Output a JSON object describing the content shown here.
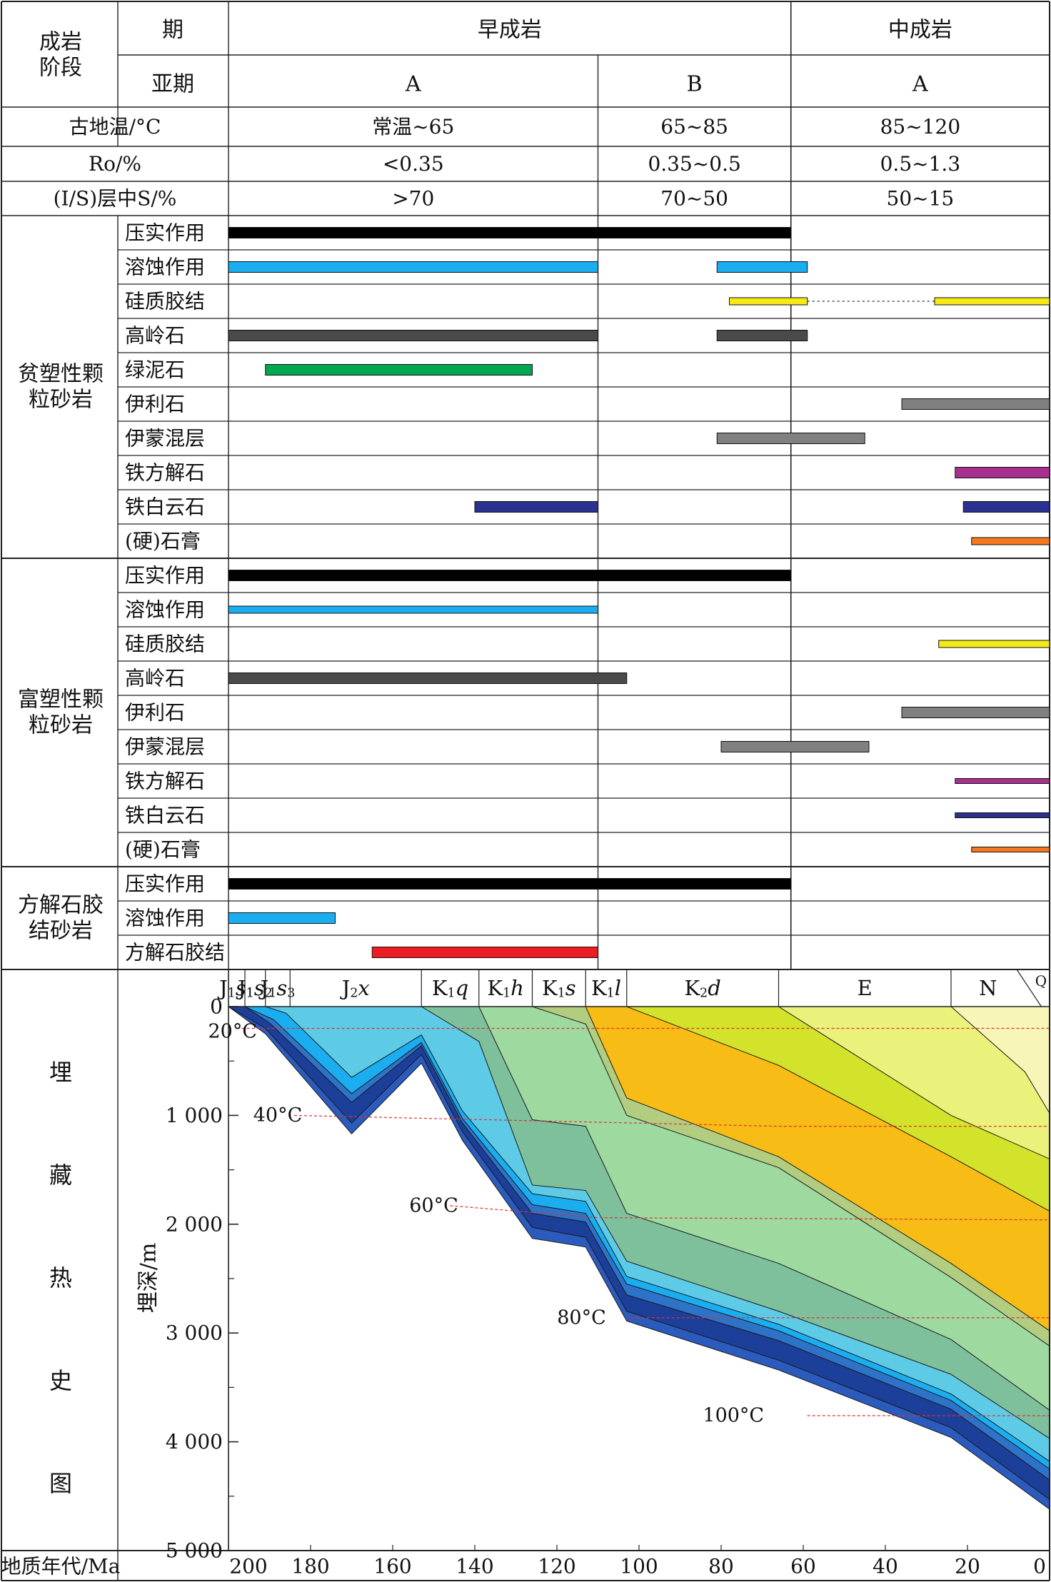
{
  "header": {
    "stage_label": "成岩\n阶段",
    "period_label": "期",
    "subperiod_label": "亚期",
    "periods": [
      {
        "name": "早成岩",
        "subs": [
          "A",
          "B"
        ]
      },
      {
        "name": "中成岩",
        "subs": [
          "A"
        ]
      }
    ],
    "rows": [
      {
        "label": "古地温/°C",
        "values": [
          "常温~65",
          "65~85",
          "85~120"
        ]
      },
      {
        "label": "Ro/%",
        "values": [
          "<0.35",
          "0.35~0.5",
          "0.5~1.3"
        ]
      },
      {
        "label": "(I/S)层中S/%",
        "values": [
          ">70",
          "70~50",
          "50~15"
        ]
      }
    ]
  },
  "diagenesis": [
    {
      "group": "贫塑性颗\n粒砂岩",
      "items": [
        {
          "name": "压实作用",
          "color": "#000000",
          "weight": "thick",
          "bars": [
            [
              200,
              63
            ]
          ]
        },
        {
          "name": "溶蚀作用",
          "color": "#1aaef0",
          "weight": "thick",
          "bars": [
            [
              200,
              110
            ],
            [
              81,
              59
            ]
          ]
        },
        {
          "name": "硅质胶结",
          "color": "#f5ea14",
          "weight": "thin",
          "bars": [
            [
              78,
              59
            ],
            [
              28,
              0
            ]
          ],
          "dotted": [
            [
              59,
              28
            ]
          ]
        },
        {
          "name": "高岭石",
          "color": "#4a4a4a",
          "weight": "thick",
          "bars": [
            [
              200,
              110
            ],
            [
              81,
              59
            ]
          ]
        },
        {
          "name": "绿泥石",
          "color": "#00a651",
          "weight": "thick",
          "bars": [
            [
              191,
              126
            ]
          ]
        },
        {
          "name": "伊利石",
          "color": "#808080",
          "weight": "thick",
          "bars": [
            [
              36,
              0
            ]
          ]
        },
        {
          "name": "伊蒙混层",
          "color": "#808080",
          "weight": "thick",
          "bars": [
            [
              81,
              45
            ]
          ]
        },
        {
          "name": "铁方解石",
          "color": "#a8308f",
          "weight": "thick",
          "bars": [
            [
              23,
              0
            ]
          ]
        },
        {
          "name": "铁白云石",
          "color": "#2b3190",
          "weight": "thick",
          "bars": [
            [
              140,
              110
            ],
            [
              21,
              0
            ]
          ]
        },
        {
          "name": "(硬)石膏",
          "color": "#f47920",
          "weight": "thin",
          "bars": [
            [
              19,
              0
            ]
          ]
        }
      ]
    },
    {
      "group": "富塑性颗\n粒砂岩",
      "items": [
        {
          "name": "压实作用",
          "color": "#000000",
          "weight": "thick",
          "bars": [
            [
              200,
              63
            ]
          ]
        },
        {
          "name": "溶蚀作用",
          "color": "#1aaef0",
          "weight": "thin",
          "bars": [
            [
              200,
              110
            ]
          ]
        },
        {
          "name": "硅质胶结",
          "color": "#f5ea14",
          "weight": "thin",
          "bars": [
            [
              27,
              0
            ]
          ]
        },
        {
          "name": "高岭石",
          "color": "#4a4a4a",
          "weight": "thick",
          "bars": [
            [
              200,
              103
            ]
          ]
        },
        {
          "name": "伊利石",
          "color": "#808080",
          "weight": "thick",
          "bars": [
            [
              36,
              0
            ]
          ]
        },
        {
          "name": "伊蒙混层",
          "color": "#808080",
          "weight": "thick",
          "bars": [
            [
              80,
              44
            ]
          ]
        },
        {
          "name": "铁方解石",
          "color": "#a8308f",
          "weight": "hair",
          "bars": [
            [
              23,
              0
            ]
          ]
        },
        {
          "name": "铁白云石",
          "color": "#2b3190",
          "weight": "hair",
          "bars": [
            [
              23,
              0
            ]
          ]
        },
        {
          "name": "(硬)石膏",
          "color": "#f47920",
          "weight": "hair",
          "bars": [
            [
              19,
              0
            ]
          ]
        }
      ]
    },
    {
      "group": "方解石胶\n结砂岩",
      "items": [
        {
          "name": "压实作用",
          "color": "#000000",
          "weight": "thick",
          "bars": [
            [
              200,
              63
            ]
          ]
        },
        {
          "name": "溶蚀作用",
          "color": "#1aaef0",
          "weight": "thick",
          "bars": [
            [
              200,
              174
            ]
          ]
        },
        {
          "name": "方解石胶结",
          "color": "#ed1c24",
          "weight": "thick",
          "bars": [
            [
              165,
              110
            ]
          ]
        }
      ]
    }
  ],
  "chart_data": {
    "type": "area",
    "section_label": "埋\n藏\n热\n史\n图",
    "ylabel": "埋深/m",
    "xlabel": "地质年代/Ma",
    "xlim": [
      200,
      0
    ],
    "ylim": [
      0,
      5000
    ],
    "xticks": [
      200,
      180,
      160,
      140,
      120,
      100,
      80,
      60,
      40,
      20,
      0
    ],
    "yticks": [
      0,
      1000,
      2000,
      3000,
      4000,
      5000
    ],
    "ytick_labels": [
      "0",
      "1 000",
      "2 000",
      "3 000",
      "4 000",
      "5 000"
    ],
    "strata": [
      {
        "label": "J1s1",
        "from": 200,
        "to": 196
      },
      {
        "label": "J1s2",
        "from": 196,
        "to": 191
      },
      {
        "label": "J1s3",
        "from": 191,
        "to": 185
      },
      {
        "label": "J2x",
        "from": 185,
        "to": 153
      },
      {
        "label": "K1q",
        "from": 153,
        "to": 139
      },
      {
        "label": "K1h",
        "from": 139,
        "to": 126
      },
      {
        "label": "K1s",
        "from": 126,
        "to": 113
      },
      {
        "label": "K1l",
        "from": 113,
        "to": 103
      },
      {
        "label": "K2d",
        "from": 103,
        "to": 66
      },
      {
        "label": "E",
        "from": 66,
        "to": 24
      },
      {
        "label": "N",
        "from": 24,
        "to": 6
      },
      {
        "label": "Q",
        "from": 6,
        "to": 0
      }
    ],
    "horizons": [
      {
        "color": "#2a5bbd",
        "points": [
          [
            200,
            0
          ],
          [
            191,
            250
          ],
          [
            170,
            1170
          ],
          [
            153,
            520
          ],
          [
            143,
            1230
          ],
          [
            126,
            2130
          ],
          [
            113,
            2210
          ],
          [
            103,
            2890
          ],
          [
            66,
            3340
          ],
          [
            24,
            3960
          ],
          [
            0,
            4620
          ]
        ]
      },
      {
        "color": "#1c3f99",
        "points": [
          [
            200,
            0
          ],
          [
            191,
            200
          ],
          [
            170,
            1070
          ],
          [
            153,
            440
          ],
          [
            143,
            1150
          ],
          [
            126,
            2030
          ],
          [
            113,
            2120
          ],
          [
            103,
            2800
          ],
          [
            66,
            3250
          ],
          [
            24,
            3870
          ],
          [
            0,
            4530
          ]
        ]
      },
      {
        "color": "#2d74c9",
        "points": [
          [
            196,
            0
          ],
          [
            190,
            150
          ],
          [
            170,
            880
          ],
          [
            153,
            360
          ],
          [
            143,
            1070
          ],
          [
            126,
            1900
          ],
          [
            113,
            1980
          ],
          [
            103,
            2650
          ],
          [
            66,
            3070
          ],
          [
            24,
            3700
          ],
          [
            0,
            4350
          ]
        ]
      },
      {
        "color": "#1aaef0",
        "points": [
          [
            196,
            0
          ],
          [
            189,
            120
          ],
          [
            170,
            800
          ],
          [
            153,
            330
          ],
          [
            143,
            1030
          ],
          [
            126,
            1820
          ],
          [
            113,
            1900
          ],
          [
            103,
            2550
          ],
          [
            66,
            2980
          ],
          [
            24,
            3620
          ],
          [
            0,
            4250
          ]
        ]
      },
      {
        "color": "#5ecbe6",
        "points": [
          [
            191,
            0
          ],
          [
            186,
            60
          ],
          [
            170,
            650
          ],
          [
            153,
            260
          ],
          [
            143,
            960
          ],
          [
            126,
            1720
          ],
          [
            113,
            1790
          ],
          [
            103,
            2480
          ],
          [
            66,
            2920
          ],
          [
            24,
            3560
          ],
          [
            0,
            4180
          ]
        ]
      },
      {
        "color": "#7ec09c",
        "points": [
          [
            153,
            0
          ],
          [
            139,
            320
          ],
          [
            126,
            1640
          ],
          [
            113,
            1690
          ],
          [
            103,
            2340
          ],
          [
            66,
            2800
          ],
          [
            24,
            3380
          ],
          [
            0,
            3970
          ]
        ]
      },
      {
        "color": "#9ed99f",
        "points": [
          [
            139,
            0
          ],
          [
            126,
            1040
          ],
          [
            113,
            1100
          ],
          [
            103,
            1900
          ],
          [
            66,
            2360
          ],
          [
            24,
            3060
          ],
          [
            0,
            3710
          ]
        ]
      },
      {
        "color": "#b2cc80",
        "points": [
          [
            126,
            0
          ],
          [
            113,
            160
          ],
          [
            103,
            1000
          ],
          [
            66,
            1480
          ],
          [
            24,
            2490
          ],
          [
            0,
            3120
          ]
        ]
      },
      {
        "color": "#f8bc16",
        "points": [
          [
            113,
            0
          ],
          [
            103,
            840
          ],
          [
            66,
            1380
          ],
          [
            24,
            2360
          ],
          [
            0,
            2980
          ]
        ]
      },
      {
        "color": "#d3e22a",
        "points": [
          [
            103,
            0
          ],
          [
            66,
            540
          ],
          [
            24,
            1380
          ],
          [
            0,
            1880
          ]
        ]
      },
      {
        "color": "#ebf27b",
        "points": [
          [
            66,
            0
          ],
          [
            24,
            1000
          ],
          [
            0,
            1400
          ]
        ]
      },
      {
        "color": "#f7f6b8",
        "points": [
          [
            24,
            0
          ],
          [
            6,
            600
          ],
          [
            0,
            980
          ]
        ]
      }
    ],
    "isotherms": [
      {
        "label": "20°C",
        "points": [
          [
            198,
            200
          ],
          [
            0,
            200
          ]
        ]
      },
      {
        "label": "40°C",
        "points": [
          [
            184,
            1000
          ],
          [
            66,
            1100
          ],
          [
            0,
            1100
          ]
        ]
      },
      {
        "label": "60°C",
        "points": [
          [
            146,
            1830
          ],
          [
            110,
            1940
          ],
          [
            0,
            1960
          ]
        ]
      },
      {
        "label": "80°C",
        "points": [
          [
            103,
            2860
          ],
          [
            0,
            2860
          ]
        ]
      },
      {
        "label": "100°C",
        "points": [
          [
            59,
            3760
          ],
          [
            0,
            3760
          ]
        ]
      }
    ],
    "isotherm_label_anchor": [
      [
        199,
        230
      ],
      [
        188,
        1000
      ],
      [
        150,
        1830
      ],
      [
        114,
        2860
      ],
      [
        77,
        3760
      ]
    ]
  }
}
